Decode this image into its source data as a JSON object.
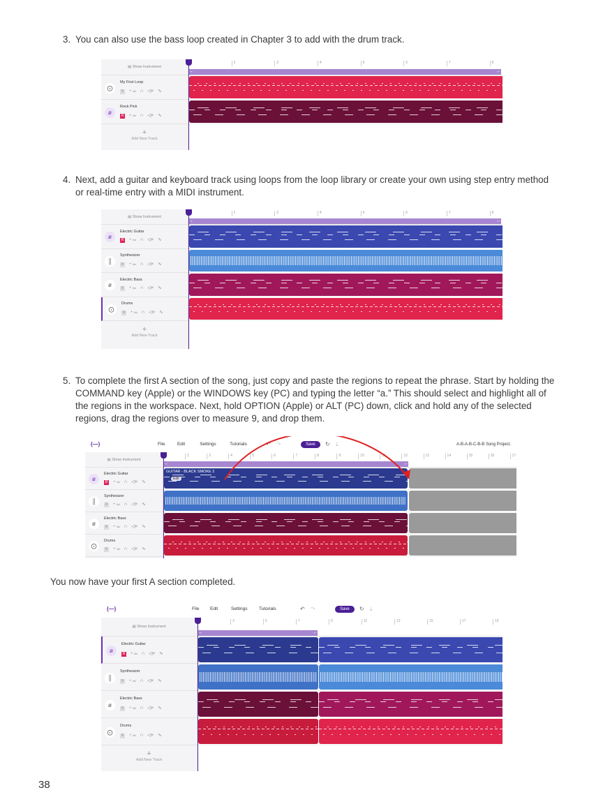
{
  "steps": [
    {
      "num": "3.",
      "text": "You can also use the bass loop created in Chapter 3 to add with the drum track."
    },
    {
      "num": "4.",
      "text": "Next, add a guitar and keyboard track using loops from the loop library or create your own using step entry method or real-time entry with a MIDI instrument."
    },
    {
      "num": "5.",
      "text": "To complete the first A section of the song, just copy and paste the regions to repeat the phrase. Start by holding the COMMAND key (Apple) or the WINDOWS key (PC) and typing the letter “a.” This should select and highlight all of the regions in the workspace. Next, hold OPTION (Apple) or ALT (PC) down, click and hold any of the selected regions, drag the regions over to measure 9, and drop them."
    }
  ],
  "completed_text": "You now have your first A section completed.",
  "page_number": "38",
  "app": {
    "logo": "(—)",
    "menu": [
      "File",
      "Edit",
      "Settings",
      "Tutorials"
    ],
    "save_label": "Save",
    "project_title": "A-B-A-B-C-B-B Song Project.",
    "show_instrument": "Show Instrument",
    "add_new_track": "Add New Track",
    "record_label": "R",
    "vol_label": "Vol"
  },
  "colors": {
    "accent": "#4b1f96",
    "loop_bar": "#a786d1",
    "drums": "#e0244c",
    "bass_dark": "#6b1038",
    "bass": "#a0185a",
    "guitar": "#3a48b0",
    "guitar_dark": "#2b3a8f",
    "synth": "#4a8ad8",
    "copied_placeholder": "#9a9a9a",
    "drag_arrow": "#e02020"
  },
  "screenshots": [
    {
      "ruler": [
        "2",
        "3",
        "4",
        "5",
        "6",
        "7",
        "8"
      ],
      "tracks": [
        {
          "name": "My First Loop",
          "icon": "drum-icon",
          "record_on": false
        },
        {
          "name": "Rock Pick",
          "icon": "guitar-icon",
          "record_on": true
        }
      ]
    },
    {
      "ruler": [
        "2",
        "3",
        "4",
        "5",
        "6",
        "7",
        "8"
      ],
      "tracks": [
        {
          "name": "Electric Guitar",
          "icon": "guitar-icon",
          "record_on": true
        },
        {
          "name": "Synthesizer",
          "icon": "synth-icon",
          "record_on": false
        },
        {
          "name": "Electric Bass",
          "icon": "guitar-icon",
          "record_on": false
        },
        {
          "name": "Drums",
          "icon": "drum-icon",
          "record_on": false
        }
      ]
    },
    {
      "ruler": [
        "2",
        "3",
        "4",
        "5",
        "6",
        "7",
        "8",
        "9",
        "10",
        "11",
        "12",
        "13",
        "14",
        "15",
        "16",
        "17"
      ],
      "region_label": "GUITAR - BLACK SMOKE 2",
      "edit_chip": "Edit",
      "tracks": [
        {
          "name": "Electric Guitar",
          "icon": "guitar-icon",
          "record_on": true
        },
        {
          "name": "Synthesizer",
          "icon": "synth-icon",
          "record_on": false
        },
        {
          "name": "Electric Bass",
          "icon": "guitar-icon",
          "record_on": false
        },
        {
          "name": "Drums",
          "icon": "drum-icon",
          "record_on": false
        }
      ]
    },
    {
      "ruler": [
        "3",
        "5",
        "7",
        "9",
        "11",
        "13",
        "15",
        "17",
        "19"
      ],
      "tracks": [
        {
          "name": "Electric Guitar",
          "icon": "guitar-icon",
          "record_on": true
        },
        {
          "name": "Synthesizer",
          "icon": "synth-icon",
          "record_on": false
        },
        {
          "name": "Electric Bass",
          "icon": "guitar-icon",
          "record_on": false
        },
        {
          "name": "Drums",
          "icon": "drum-icon",
          "record_on": false
        }
      ]
    }
  ]
}
